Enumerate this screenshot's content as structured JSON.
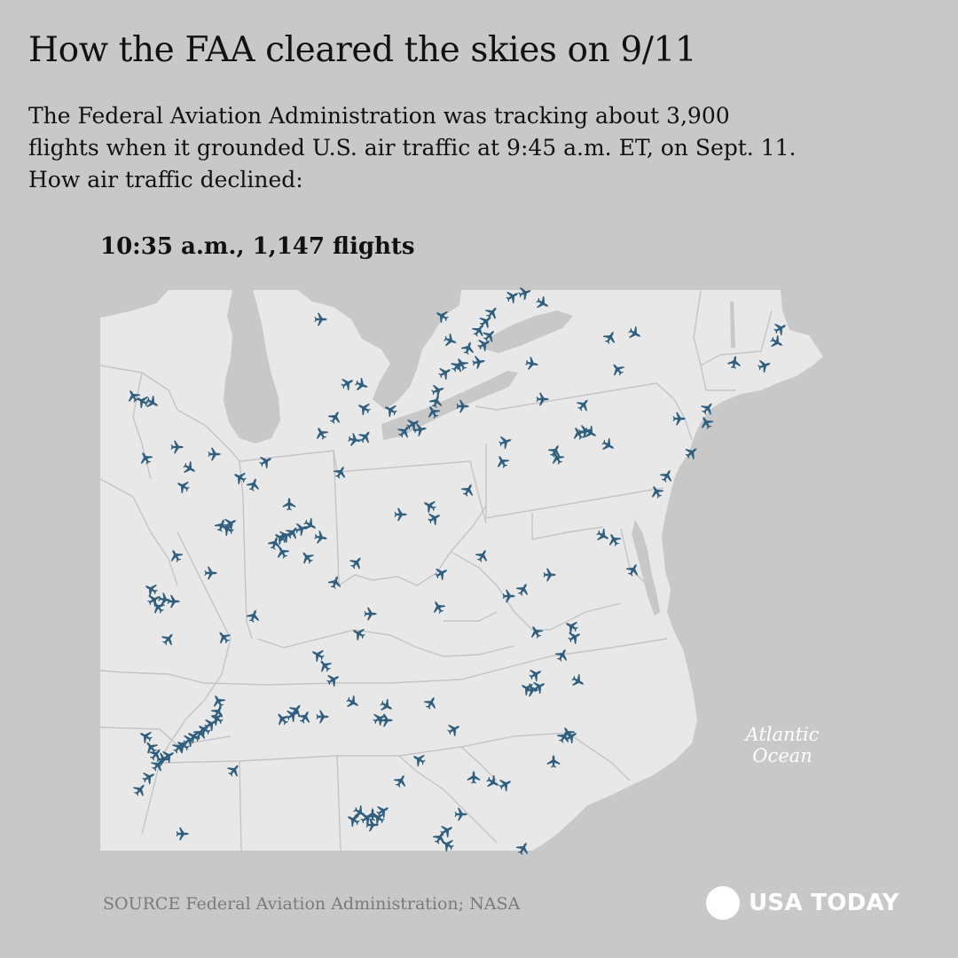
{
  "headline": "How the FAA cleared the skies on 9/11",
  "dek": [
    "The Federal Aviation Administration was tracking about 3,900",
    "flights when it grounded U.S. air traffic at 9:45 a.m. ET, on Sept. 11.",
    "How air traffic declined:"
  ],
  "snapshot": {
    "time": "10:35 a.m.",
    "flights": "1,147 flights",
    "label": "10:35 a.m., 1,147 flights"
  },
  "map": {
    "ocean_label": [
      "Atlantic",
      "Ocean"
    ],
    "colors": {
      "land": "#e8e8e9",
      "water": "#c8c8c8",
      "borders": "#c4c4c6",
      "plane": "#2f5e7e"
    },
    "plane_icon": "airplane-icon"
  },
  "source": "SOURCE Federal Aviation Administration; NASA",
  "brand": "USA TODAY"
}
